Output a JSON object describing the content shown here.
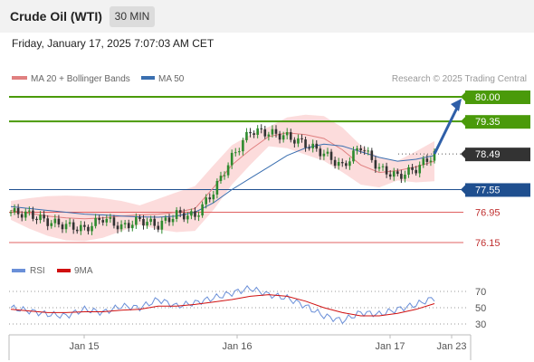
{
  "header": {
    "instrument": "Crude Oil (WTI)",
    "timeframe": "30 MIN",
    "datetime": "Friday, January 17, 2025 7:07:03 AM CET"
  },
  "legend": {
    "ma20": "MA 20 + Bollinger Bands",
    "ma50": "MA 50",
    "credit": "Research © 2025 Trading Central",
    "rsi": "RSI",
    "rsi_ma": "9MA"
  },
  "colors": {
    "support": "#e06060",
    "resistance": "#4a9a0a",
    "pivot": "#1f4f8f",
    "last": "#333333",
    "ma20": "#e08080",
    "ma50": "#3a6fb0",
    "band": "#fbd6d6",
    "rsi": "#6a8fd8",
    "rsi_ma": "#d01010",
    "arrow": "#2f5fa8"
  },
  "chart_data": [
    {
      "type": "candlestick",
      "title": "Crude Oil (WTI)",
      "timeframe": "30 MIN",
      "x_tick_labels": [
        "Jan 15",
        "Jan 16",
        "Jan 17",
        "Jan 23"
      ],
      "ylim": [
        76.0,
        80.1
      ],
      "levels": [
        {
          "label": "80.00",
          "value": 80.0,
          "kind": "resistance"
        },
        {
          "label": "79.35",
          "value": 79.35,
          "kind": "resistance"
        },
        {
          "label": "78.49",
          "value": 78.49,
          "kind": "last"
        },
        {
          "label": "77.55",
          "value": 77.55,
          "kind": "pivot"
        },
        {
          "label": "76.95",
          "value": 76.95,
          "kind": "support"
        },
        {
          "label": "76.15",
          "value": 76.15,
          "kind": "support"
        }
      ],
      "series": [
        {
          "name": "MA 20 + Bollinger Bands",
          "values": [
            77.0,
            76.92,
            76.85,
            76.8,
            76.78,
            76.8,
            76.85,
            76.88,
            76.9,
            76.95,
            77.05,
            77.6,
            78.2,
            78.6,
            78.95,
            79.05,
            79.0,
            78.9,
            78.6,
            78.2,
            78.0,
            78.05,
            78.15,
            78.3
          ]
        },
        {
          "name": "MA 50",
          "values": [
            77.1,
            77.05,
            77.0,
            76.95,
            76.9,
            76.88,
            76.85,
            76.83,
            76.82,
            76.85,
            76.95,
            77.2,
            77.55,
            77.85,
            78.15,
            78.45,
            78.65,
            78.75,
            78.7,
            78.55,
            78.4,
            78.3,
            78.35,
            78.45
          ]
        }
      ],
      "close": [
        76.95,
        76.9,
        76.7,
        76.6,
        76.5,
        76.8,
        76.55,
        76.75,
        76.6,
        76.9,
        76.85,
        77.5,
        78.4,
        79.1,
        79.05,
        78.95,
        78.75,
        78.5,
        78.15,
        78.7,
        78.1,
        77.9,
        78.1,
        78.49
      ],
      "annotation": {
        "type": "arrow",
        "from": 78.49,
        "to": 80.0
      }
    },
    {
      "type": "line",
      "title": "RSI",
      "y_tick_labels": [
        "70",
        "50",
        "30"
      ],
      "ylim": [
        20,
        80
      ],
      "series": [
        {
          "name": "RSI",
          "values": [
            50,
            46,
            42,
            40,
            48,
            44,
            52,
            50,
            60,
            52,
            56,
            62,
            68,
            74,
            66,
            62,
            52,
            40,
            34,
            44,
            42,
            48,
            54,
            62
          ]
        },
        {
          "name": "9MA",
          "values": [
            48,
            46,
            44,
            44,
            45,
            45,
            47,
            48,
            52,
            52,
            54,
            57,
            60,
            64,
            66,
            64,
            58,
            50,
            44,
            40,
            40,
            43,
            48,
            55
          ]
        }
      ]
    }
  ]
}
